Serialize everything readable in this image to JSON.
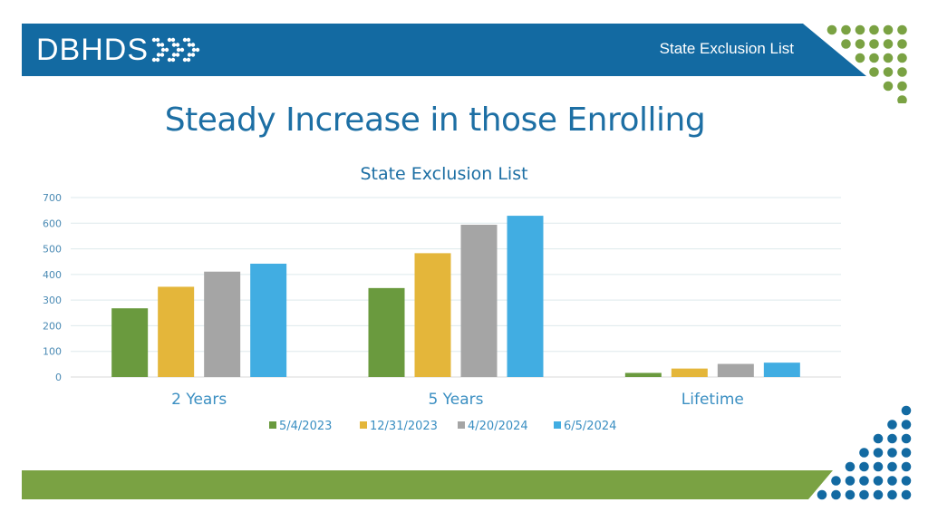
{
  "header": {
    "logo_text": "DBHDS",
    "right_label": "State Exclusion List"
  },
  "slide_title": "Steady Increase in those Enrolling",
  "colors": {
    "header_blue": "#136aa2",
    "footer_green": "#7aa243",
    "dot_green": "#7aa243",
    "dot_blue": "#136aa2",
    "title_blue": "#1d6fa4"
  },
  "chart_data": {
    "type": "bar",
    "title": "State Exclusion List",
    "categories": [
      "2 Years",
      "5 Years",
      "Lifetime"
    ],
    "series": [
      {
        "name": "5/4/2023",
        "color": "#6a9a3e",
        "values": [
          268,
          347,
          16
        ]
      },
      {
        "name": "12/31/2023",
        "color": "#e4b63a",
        "values": [
          352,
          483,
          33
        ]
      },
      {
        "name": "4/20/2024",
        "color": "#a5a5a5",
        "values": [
          411,
          594,
          51
        ]
      },
      {
        "name": "6/5/2024",
        "color": "#41ade2",
        "values": [
          442,
          629,
          56
        ]
      }
    ],
    "ylim": [
      0,
      700
    ],
    "yticks": [
      "0",
      "100",
      "200",
      "300",
      "400",
      "500",
      "600",
      "700"
    ],
    "grid": true,
    "legend": "bottom"
  }
}
